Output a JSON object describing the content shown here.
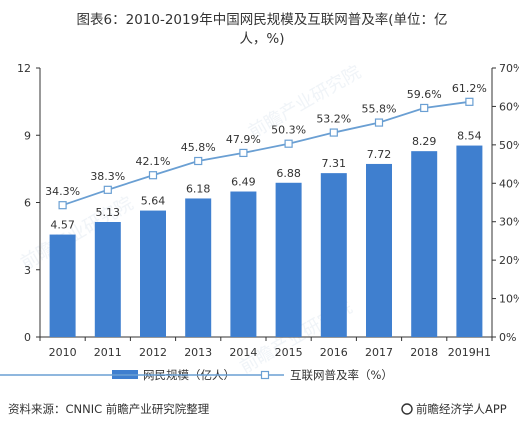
{
  "chart_data": {
    "type": "bar+line",
    "title_line1": "图表6：2010-2019年中国网民规模及互联网普及率(单位：亿",
    "title_line2": "人，%)",
    "categories": [
      "2010",
      "2011",
      "2012",
      "2013",
      "2014",
      "2015",
      "2016",
      "2017",
      "2018",
      "2019H1"
    ],
    "series": [
      {
        "name": "网民规模（亿人）",
        "type": "bar",
        "axis": "left",
        "values": [
          4.57,
          5.13,
          5.64,
          6.18,
          6.49,
          6.88,
          7.31,
          7.72,
          8.29,
          8.54
        ],
        "labels": [
          "4.57",
          "5.13",
          "5.64",
          "6.18",
          "6.49",
          "6.88",
          "7.31",
          "7.72",
          "8.29",
          "8.54"
        ],
        "color": "#3f7fcf"
      },
      {
        "name": "互联网普及率（%）",
        "type": "line",
        "axis": "right",
        "values": [
          34.3,
          38.3,
          42.1,
          45.8,
          47.9,
          50.3,
          53.2,
          55.8,
          59.6,
          61.2
        ],
        "labels": [
          "34.3%",
          "38.3%",
          "42.1%",
          "45.8%",
          "47.9%",
          "50.3%",
          "53.2%",
          "55.8%",
          "59.6%",
          "61.2%"
        ],
        "color": "#6a9fd3"
      }
    ],
    "left_axis": {
      "min": 0,
      "max": 12,
      "ticks": [
        "0",
        "3",
        "6",
        "9",
        "12"
      ]
    },
    "right_axis": {
      "min": 0,
      "max": 70,
      "ticks": [
        "0%",
        "10%",
        "20%",
        "30%",
        "40%",
        "50%",
        "60%",
        "70%"
      ]
    },
    "grid": false,
    "legend_position": "bottom"
  },
  "source": "资料来源：CNNIC 前瞻产业研究院整理",
  "brand": "前瞻经济学人APP",
  "watermark": "前瞻产业研究院",
  "colors": {
    "bar": "#3f7fcf",
    "line": "#6a9fd3",
    "axis": "#333333"
  }
}
